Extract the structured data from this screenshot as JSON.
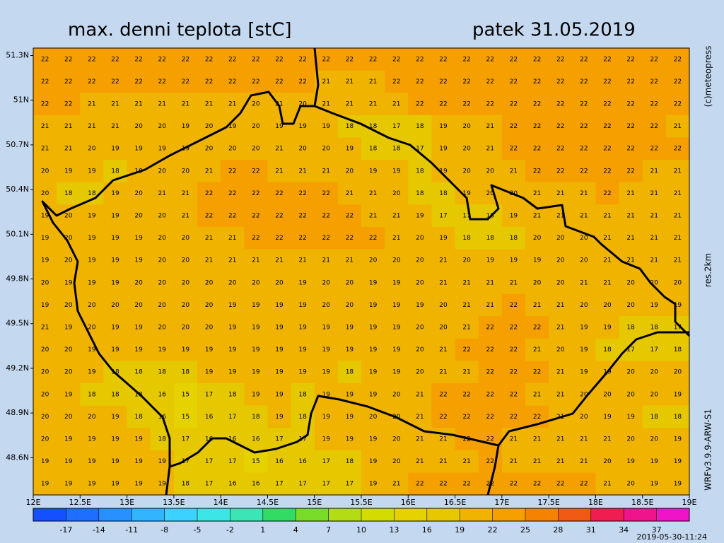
{
  "header": {
    "title": "max. denni teplota [stC]",
    "date": "patek 31.05.2019"
  },
  "credits": {
    "copyright": "(c)meteopress",
    "resolution": "res.2km",
    "model": "WRFv3.9.9-ARW-S1",
    "issued": "2019-05-30-11:24"
  },
  "map": {
    "type": "grid",
    "xlim": [
      12,
      19
    ],
    "ylim": [
      48.35,
      51.35
    ],
    "xticks": [
      {
        "value": 12,
        "label": "12E"
      },
      {
        "value": 12.5,
        "label": "12.5E"
      },
      {
        "value": 13,
        "label": "13E"
      },
      {
        "value": 13.5,
        "label": "13.5E"
      },
      {
        "value": 14,
        "label": "14E"
      },
      {
        "value": 14.5,
        "label": "14.5E"
      },
      {
        "value": 15,
        "label": "15E"
      },
      {
        "value": 15.5,
        "label": "15.5E"
      },
      {
        "value": 16,
        "label": "16E"
      },
      {
        "value": 16.5,
        "label": "16.5E"
      },
      {
        "value": 17,
        "label": "17E"
      },
      {
        "value": 17.5,
        "label": "17.5E"
      },
      {
        "value": 18,
        "label": "18E"
      },
      {
        "value": 18.5,
        "label": "18.5E"
      },
      {
        "value": 19,
        "label": "19E"
      }
    ],
    "yticks": [
      {
        "value": 48.6,
        "label": "48.6N"
      },
      {
        "value": 48.9,
        "label": "48.9N"
      },
      {
        "value": 49.2,
        "label": "49.2N"
      },
      {
        "value": 49.5,
        "label": "49.5N"
      },
      {
        "value": 49.8,
        "label": "49.8N"
      },
      {
        "value": 50.1,
        "label": "50.1N"
      },
      {
        "value": 50.4,
        "label": "50.4N"
      },
      {
        "value": 50.7,
        "label": "50.7N"
      },
      {
        "value": 51,
        "label": "51N"
      },
      {
        "value": 51.3,
        "label": "51.3N"
      }
    ],
    "values": [
      [
        22,
        22,
        22,
        22,
        22,
        22,
        22,
        22,
        22,
        22,
        22,
        22,
        22,
        22,
        22,
        22,
        22,
        22,
        22,
        22,
        22,
        22,
        22,
        22,
        22,
        22,
        22,
        22
      ],
      [
        22,
        22,
        22,
        22,
        22,
        22,
        22,
        22,
        22,
        22,
        22,
        22,
        21,
        21,
        21,
        22,
        22,
        22,
        22,
        22,
        22,
        22,
        22,
        22,
        22,
        22,
        22,
        22
      ],
      [
        22,
        22,
        21,
        21,
        21,
        21,
        21,
        21,
        21,
        20,
        21,
        20,
        21,
        21,
        21,
        21,
        22,
        22,
        22,
        22,
        22,
        22,
        22,
        22,
        22,
        22,
        22,
        22
      ],
      [
        21,
        21,
        21,
        21,
        20,
        20,
        19,
        20,
        19,
        20,
        19,
        19,
        19,
        18,
        18,
        17,
        18,
        19,
        20,
        21,
        22,
        22,
        22,
        22,
        22,
        22,
        22,
        21
      ],
      [
        21,
        21,
        20,
        19,
        19,
        19,
        19,
        20,
        20,
        20,
        21,
        20,
        20,
        19,
        18,
        18,
        17,
        19,
        20,
        21,
        22,
        22,
        22,
        22,
        22,
        22,
        22,
        22
      ],
      [
        20,
        19,
        19,
        18,
        19,
        20,
        20,
        21,
        22,
        22,
        21,
        21,
        21,
        20,
        19,
        19,
        18,
        19,
        20,
        20,
        21,
        22,
        22,
        22,
        22,
        22,
        21,
        21
      ],
      [
        20,
        18,
        18,
        19,
        20,
        21,
        21,
        22,
        22,
        22,
        22,
        22,
        22,
        21,
        21,
        20,
        18,
        18,
        19,
        20,
        20,
        21,
        21,
        21,
        22,
        21,
        21,
        21
      ],
      [
        19,
        20,
        19,
        19,
        20,
        20,
        21,
        22,
        22,
        22,
        22,
        22,
        22,
        22,
        21,
        21,
        19,
        17,
        17,
        18,
        19,
        21,
        21,
        21,
        21,
        21,
        21,
        21
      ],
      [
        19,
        20,
        19,
        19,
        19,
        20,
        20,
        21,
        21,
        22,
        22,
        22,
        22,
        22,
        22,
        21,
        20,
        19,
        18,
        18,
        18,
        20,
        20,
        20,
        21,
        21,
        21,
        21
      ],
      [
        19,
        20,
        19,
        19,
        19,
        20,
        20,
        21,
        21,
        21,
        21,
        21,
        21,
        21,
        20,
        20,
        20,
        21,
        20,
        19,
        19,
        19,
        20,
        20,
        21,
        21,
        21,
        21
      ],
      [
        20,
        19,
        19,
        19,
        20,
        20,
        20,
        20,
        20,
        20,
        20,
        19,
        20,
        20,
        19,
        19,
        20,
        21,
        21,
        21,
        21,
        20,
        20,
        21,
        21,
        20,
        20,
        20
      ],
      [
        19,
        20,
        20,
        20,
        20,
        20,
        20,
        20,
        19,
        19,
        19,
        19,
        20,
        20,
        19,
        19,
        19,
        20,
        21,
        21,
        22,
        21,
        21,
        20,
        20,
        20,
        19,
        19
      ],
      [
        21,
        19,
        20,
        19,
        19,
        20,
        20,
        20,
        19,
        19,
        19,
        19,
        19,
        19,
        19,
        19,
        20,
        20,
        21,
        22,
        22,
        22,
        21,
        19,
        19,
        18,
        18,
        17
      ],
      [
        20,
        20,
        19,
        19,
        19,
        19,
        19,
        19,
        19,
        19,
        19,
        19,
        19,
        19,
        19,
        19,
        20,
        21,
        22,
        22,
        22,
        21,
        20,
        19,
        18,
        17,
        17,
        18
      ],
      [
        20,
        20,
        19,
        18,
        18,
        18,
        18,
        19,
        19,
        19,
        19,
        19,
        19,
        18,
        19,
        19,
        20,
        21,
        21,
        22,
        22,
        22,
        21,
        19,
        19,
        20,
        20,
        20
      ],
      [
        20,
        19,
        18,
        18,
        18,
        16,
        15,
        17,
        18,
        19,
        19,
        18,
        19,
        19,
        19,
        20,
        21,
        22,
        22,
        22,
        22,
        21,
        21,
        20,
        20,
        20,
        20,
        19
      ],
      [
        20,
        20,
        20,
        19,
        18,
        16,
        15,
        16,
        17,
        18,
        19,
        18,
        19,
        19,
        20,
        20,
        21,
        22,
        22,
        22,
        22,
        22,
        21,
        20,
        19,
        19,
        18,
        18
      ],
      [
        20,
        19,
        19,
        19,
        19,
        18,
        17,
        16,
        16,
        16,
        17,
        17,
        19,
        19,
        19,
        20,
        21,
        21,
        22,
        22,
        21,
        21,
        21,
        21,
        21,
        20,
        20,
        19
      ],
      [
        19,
        19,
        19,
        19,
        19,
        19,
        17,
        17,
        17,
        15,
        16,
        16,
        17,
        18,
        19,
        20,
        21,
        21,
        21,
        22,
        21,
        21,
        21,
        21,
        20,
        19,
        19,
        19
      ],
      [
        19,
        19,
        19,
        19,
        19,
        19,
        18,
        17,
        16,
        16,
        17,
        17,
        17,
        17,
        19,
        21,
        22,
        22,
        22,
        22,
        22,
        22,
        22,
        22,
        21,
        20,
        19,
        19
      ]
    ]
  },
  "colorbar": {
    "lim": [
      -20,
      40
    ],
    "ticks": [
      -17,
      -14,
      -11,
      -8,
      -5,
      -2,
      1,
      4,
      7,
      10,
      13,
      16,
      19,
      22,
      25,
      28,
      31,
      34,
      37
    ],
    "colors": [
      "#1450ff",
      "#1e6eff",
      "#2890ff",
      "#32b4ff",
      "#3cd2ff",
      "#3ce6e6",
      "#3ce6b4",
      "#32dc64",
      "#78dc28",
      "#b4dc14",
      "#d2dc00",
      "#e6d200",
      "#e6c800",
      "#f0b400",
      "#f5a000",
      "#f58200",
      "#f05a14",
      "#f01e50",
      "#f0148c",
      "#f014c8"
    ]
  }
}
